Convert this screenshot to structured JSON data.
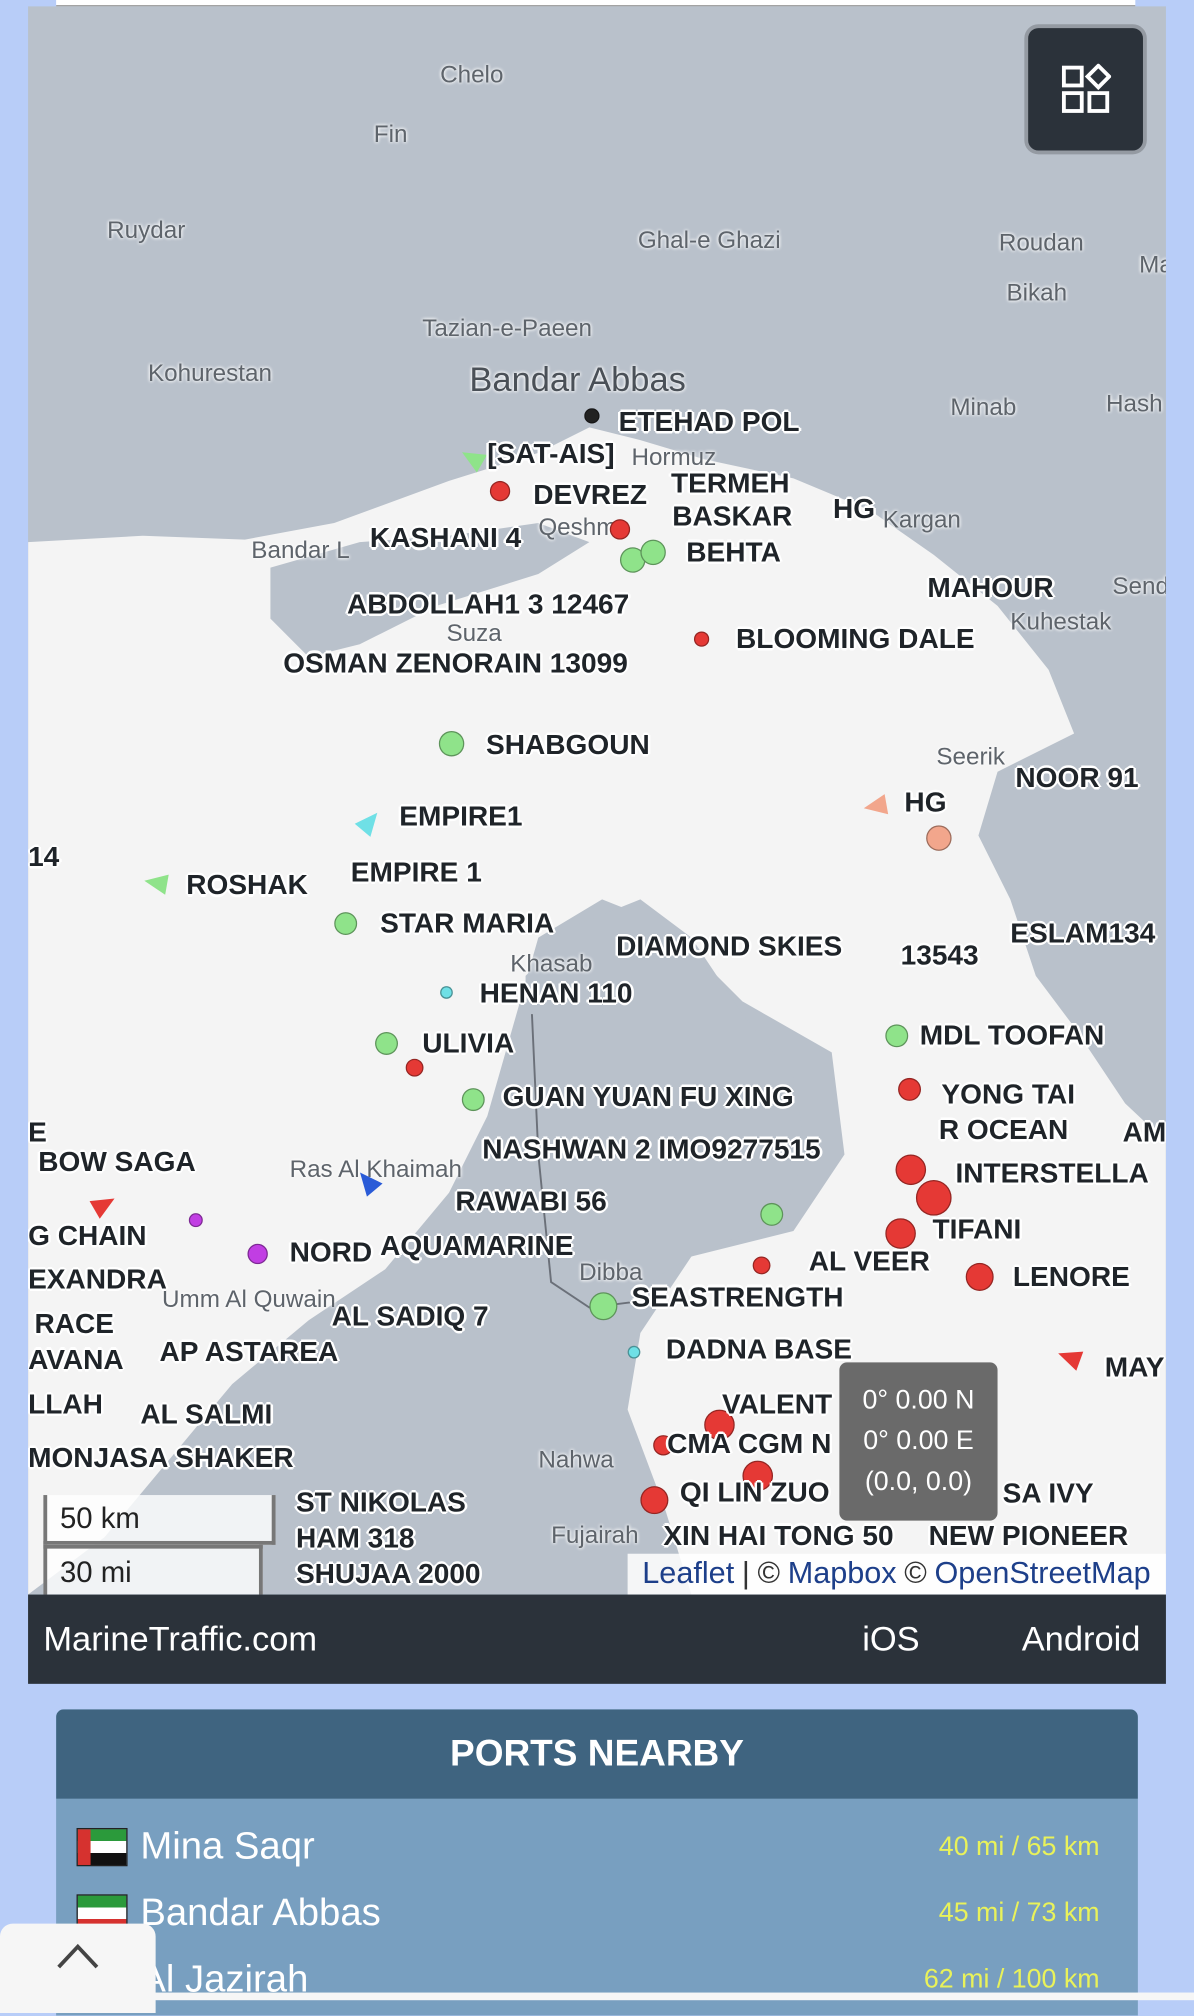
{
  "map": {
    "place_names": [
      "Chelo",
      "Fin",
      "Ruydar",
      "Ghal-e Ghazi",
      "Roudan",
      "Bikah",
      "Ma",
      "Tazian-e-Paeen",
      "Kohurestan",
      "Bandar Abbas",
      "Minab",
      "Hash",
      "Hormuz",
      "Kargan",
      "Qeshm",
      "Bandar L",
      "Kuhestak",
      "Send",
      "Suza",
      "Seerik",
      "Khasab",
      "Ras Al Khaimah",
      "Umm Al Quwain",
      "Dibba",
      "Nahwa",
      "Fujairah"
    ],
    "vessels": [
      "ETEHAD POL",
      "[SAT-AIS]",
      "DEVREZ",
      "TERMEH",
      "BASKAR",
      "HG",
      "KASHANI 4",
      "BEHTA",
      "MAHOUR",
      "ABDOLLAH1 3 12467",
      "BLOOMING DALE",
      "OSMAN ZENORAIN 13099",
      "SHABGOUN",
      "NOOR 91",
      "HG",
      "EMPIRE1",
      "14",
      "EMPIRE 1",
      "ROSHAK",
      "STAR MARIA",
      "ESLAM134",
      "DIAMOND SKIES",
      "13543",
      "HENAN 110",
      "MDL TOOFAN",
      "ULIVIA",
      "GUAN YUAN FU XING",
      "YONG TAI",
      "R OCEAN",
      "AM",
      "E",
      "NASHWAN 2 IMO9277515",
      "BOW SAGA",
      "INTERSTELLA",
      "RAWABI 56",
      "G CHAIN",
      "TIFANI",
      "NORD",
      "AQUAMARINE",
      "AL VEER",
      "EXANDRA",
      "LENORE",
      "SEASTRENGTH",
      "RACE",
      "AL SADIQ 7",
      "MAY",
      "AVANA",
      "AP ASTAREA",
      "DADNA BASE",
      "VALENT",
      "LLAH",
      "AL SALMI",
      "CMA CGM N",
      "MONJASA SHAKER",
      "QI LIN ZUO",
      "SA IVY",
      "XIN HAI TONG 50",
      "NEW PIONEER",
      "SHUJAA 2000",
      "ST NIKOLAS",
      "HAM 318"
    ],
    "marker_colors": {
      "cargo": "#8fe38a",
      "tanker": "#e53935",
      "passenger": "#2a5bd7",
      "tug": "#6fe0e6",
      "pleasure": "#c13ee3",
      "unknown": "#f2a68c"
    },
    "layers_button_icon": "layers-grid-icon",
    "coordinates": {
      "lat": "0° 0.00 N",
      "lon": "0° 0.00 E",
      "xy": "(0.0, 0.0)"
    },
    "scale": {
      "km": "50 km",
      "mi": "30 mi"
    },
    "attribution": {
      "leaflet": "Leaflet",
      "sep": "|",
      "mapbox_prefix": "©",
      "mapbox": "Mapbox",
      "osm_prefix": "©",
      "osm": "OpenStreetMap"
    }
  },
  "footer": {
    "brand": "MarineTraffic.com",
    "ios": "iOS",
    "android": "Android"
  },
  "ports_nearby": {
    "title": "PORTS NEARBY",
    "ports": [
      {
        "name": "Mina Saqr",
        "flag": "UAE",
        "distance": "40 mi / 65 km"
      },
      {
        "name": "Bandar Abbas",
        "flag": "Iran",
        "distance": "45 mi / 73 km"
      },
      {
        "name": "Al Jazirah",
        "flag": "UAE",
        "distance": "62 mi / 100 km"
      }
    ]
  },
  "scroll_up_icon": "chevron-up-icon"
}
